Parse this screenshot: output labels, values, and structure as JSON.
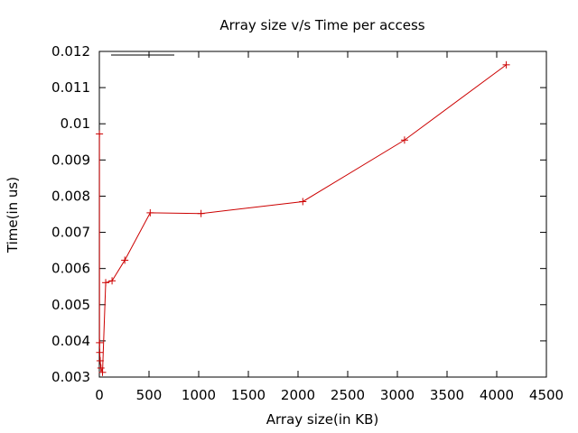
{
  "chart_data": {
    "type": "line",
    "title": "Array size v/s Time per access",
    "xlabel": "Array size(in KB)",
    "ylabel": "Time(in us)",
    "xlim": [
      0,
      4500
    ],
    "ylim": [
      0.003,
      0.012
    ],
    "xticks": [
      0,
      500,
      1000,
      1500,
      2000,
      2500,
      3000,
      3500,
      4000,
      4500
    ],
    "yticks": [
      0.003,
      0.004,
      0.005,
      0.006,
      0.007,
      0.008,
      0.009,
      0.01,
      0.011,
      0.012
    ],
    "xtick_labels": [
      "0",
      "500",
      "1000",
      "1500",
      "2000",
      "2500",
      "3000",
      "3500",
      "4000",
      "4500"
    ],
    "ytick_labels": [
      "0.003",
      "0.004",
      "0.005",
      "0.006",
      "0.007",
      "0.008",
      "0.009",
      "0.01",
      "0.011",
      "0.012"
    ],
    "grid": false,
    "legend": "top-left",
    "series": [
      {
        "name": "",
        "color": "#cc0000",
        "marker": "plus",
        "x": [
          1,
          2,
          4,
          8,
          16,
          32,
          64,
          128,
          256,
          512,
          1024,
          2048,
          3072,
          4096
        ],
        "y": [
          0.00972,
          0.00395,
          0.00368,
          0.00345,
          0.00325,
          0.00313,
          0.00561,
          0.00566,
          0.00623,
          0.00754,
          0.00752,
          0.00785,
          0.00955,
          0.01163
        ]
      }
    ]
  }
}
